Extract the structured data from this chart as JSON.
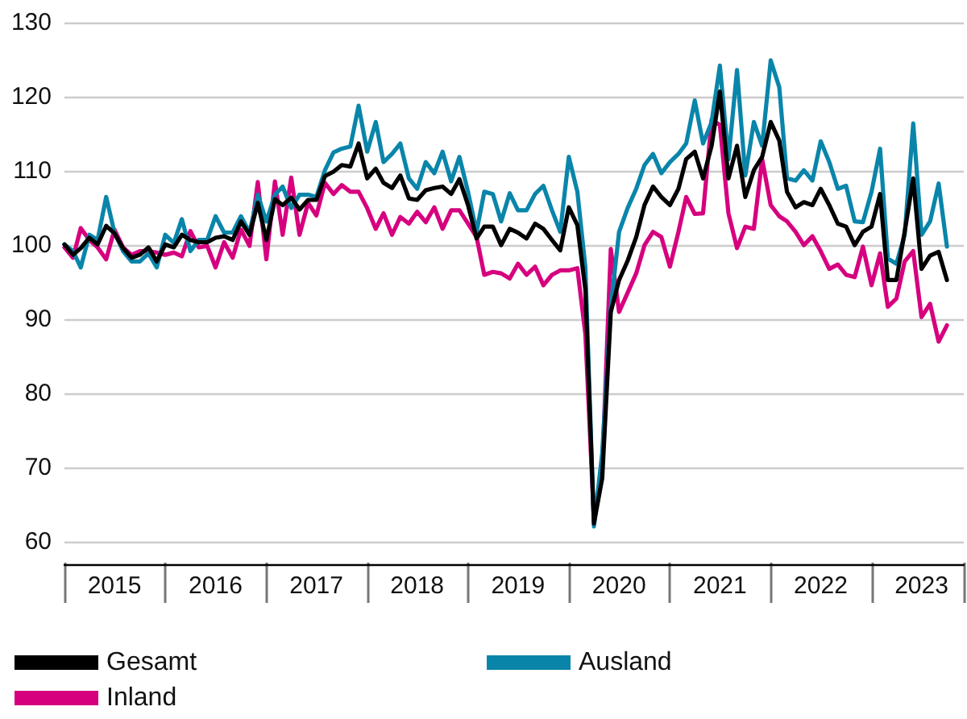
{
  "chart_data": {
    "type": "line",
    "x": [
      "2015-01",
      "2015-02",
      "2015-03",
      "2015-04",
      "2015-05",
      "2015-06",
      "2015-07",
      "2015-08",
      "2015-09",
      "2015-10",
      "2015-11",
      "2015-12",
      "2016-01",
      "2016-02",
      "2016-03",
      "2016-04",
      "2016-05",
      "2016-06",
      "2016-07",
      "2016-08",
      "2016-09",
      "2016-10",
      "2016-11",
      "2016-12",
      "2017-01",
      "2017-02",
      "2017-03",
      "2017-04",
      "2017-05",
      "2017-06",
      "2017-07",
      "2017-08",
      "2017-09",
      "2017-10",
      "2017-11",
      "2017-12",
      "2018-01",
      "2018-02",
      "2018-03",
      "2018-04",
      "2018-05",
      "2018-06",
      "2018-07",
      "2018-08",
      "2018-09",
      "2018-10",
      "2018-11",
      "2018-12",
      "2019-01",
      "2019-02",
      "2019-03",
      "2019-04",
      "2019-05",
      "2019-06",
      "2019-07",
      "2019-08",
      "2019-09",
      "2019-10",
      "2019-11",
      "2019-12",
      "2020-01",
      "2020-02",
      "2020-03",
      "2020-04",
      "2020-05",
      "2020-06",
      "2020-07",
      "2020-08",
      "2020-09",
      "2020-10",
      "2020-11",
      "2020-12",
      "2021-01",
      "2021-02",
      "2021-03",
      "2021-04",
      "2021-05",
      "2021-06",
      "2021-07",
      "2021-08",
      "2021-09",
      "2021-10",
      "2021-11",
      "2021-12",
      "2022-01",
      "2022-02",
      "2022-03",
      "2022-04",
      "2022-05",
      "2022-06",
      "2022-07",
      "2022-08",
      "2022-09",
      "2022-10",
      "2022-11",
      "2022-12",
      "2023-01",
      "2023-02",
      "2023-03",
      "2023-04",
      "2023-05",
      "2023-06",
      "2023-07",
      "2023-08",
      "2023-09",
      "2023-10"
    ],
    "series": [
      {
        "name": "Gesamt",
        "color": "#000000",
        "values": [
          100.1,
          98.7,
          99.6,
          101,
          100.1,
          102.6,
          101.6,
          99.6,
          98.3,
          98.7,
          99.7,
          97.8,
          100.1,
          99.7,
          101.4,
          100.7,
          100.4,
          100.4,
          101,
          101.2,
          100.7,
          103.2,
          101.4,
          105.7,
          100.7,
          106.2,
          105.4,
          106.4,
          104.8,
          106.1,
          106.1,
          109.3,
          109.9,
          110.8,
          110.6,
          113.7,
          109,
          110.3,
          108.4,
          107.7,
          109.4,
          106.3,
          106.1,
          107.4,
          107.7,
          107.9,
          106.9,
          108.9,
          105.4,
          100.9,
          102.5,
          102.5,
          100,
          102.2,
          101.7,
          100.9,
          102.9,
          102.2,
          100.7,
          99.3,
          105.1,
          102.7,
          94,
          62.5,
          68.6,
          91,
          95.3,
          97.9,
          101.1,
          105.4,
          107.9,
          106.5,
          105.4,
          107.6,
          111.6,
          112.6,
          109,
          113.4,
          120.7,
          109,
          113.4,
          106.5,
          110.1,
          111.9,
          116.6,
          114.1,
          107.2,
          105.1,
          105.8,
          105.4,
          107.6,
          105.4,
          102.9,
          102.5,
          100,
          101.8,
          102.5,
          106.9,
          95.3,
          95.3,
          101.8,
          109,
          96.8,
          98.6,
          99.1,
          95.3
        ]
      },
      {
        "name": "Ausland",
        "color": "#0a85aa",
        "values": [
          100.1,
          99.2,
          97,
          101.4,
          100.7,
          106.5,
          101.7,
          99.2,
          97.8,
          97.8,
          98.9,
          97,
          101.4,
          100.3,
          103.5,
          99.2,
          100.7,
          100.7,
          103.9,
          101.7,
          101.7,
          103.9,
          101.7,
          106.8,
          103.2,
          106.8,
          107.9,
          105,
          106.8,
          106.8,
          106.5,
          110.1,
          112.5,
          113,
          113.3,
          118.8,
          112.6,
          116.6,
          111.2,
          112.3,
          113.7,
          109,
          107.6,
          111.2,
          109.7,
          112.6,
          108.6,
          111.9,
          107.2,
          101.8,
          107.2,
          106.9,
          103.2,
          107,
          104.7,
          104.7,
          106.9,
          108,
          104.7,
          101.8,
          111.9,
          107.2,
          97,
          62.1,
          72,
          91.7,
          101.8,
          105,
          107.6,
          110.8,
          112.3,
          109.7,
          111.2,
          112.3,
          113.7,
          119.5,
          113.7,
          116.6,
          124.2,
          111.6,
          123.6,
          109.4,
          116.6,
          113.4,
          124.9,
          121.3,
          109,
          108.7,
          110.1,
          108.7,
          114,
          111.2,
          107.6,
          108,
          103.2,
          103.1,
          107.2,
          113,
          98.2,
          97.5,
          101.4,
          116.4,
          101.4,
          103.2,
          108.3,
          99.8
        ]
      },
      {
        "name": "Inland",
        "color": "#d6007f",
        "values": [
          99.7,
          98.3,
          102.3,
          100.7,
          99.7,
          98.1,
          102.1,
          99.7,
          98.7,
          99.2,
          99.2,
          99,
          98.7,
          99,
          98.5,
          101.9,
          99.7,
          99.9,
          97,
          100.4,
          98.3,
          102.1,
          99.9,
          108.5,
          98.1,
          108.6,
          101.4,
          109.1,
          101.4,
          105.7,
          104,
          108.4,
          106.9,
          108.1,
          107.2,
          107.2,
          105,
          102.2,
          104.3,
          101.4,
          103.8,
          102.9,
          104.5,
          103.1,
          105.1,
          102.2,
          104.7,
          104.7,
          102.9,
          101.1,
          96,
          96.4,
          96.2,
          95.5,
          97.5,
          96,
          97.1,
          94.6,
          96,
          96.6,
          96.6,
          96.9,
          88,
          63,
          70,
          99.5,
          91,
          93.6,
          96.2,
          100,
          101.8,
          101.1,
          97.1,
          101.8,
          106.5,
          104.2,
          104.3,
          116.9,
          116.2,
          104.3,
          99.6,
          102.5,
          102.2,
          111.6,
          105.4,
          103.9,
          103.2,
          101.8,
          100,
          101.2,
          99.2,
          96.8,
          97.4,
          96,
          95.7,
          99.8,
          94.6,
          98.9,
          91.7,
          92.8,
          97.8,
          99.2,
          90.3,
          92.1,
          87,
          89.2
        ]
      }
    ],
    "xlim": [
      "2015-01",
      "2023-12"
    ],
    "xticks": [
      {
        "value": "2015-07",
        "label": "2015"
      },
      {
        "value": "2016-07",
        "label": "2016"
      },
      {
        "value": "2017-07",
        "label": "2017"
      },
      {
        "value": "2018-07",
        "label": "2018"
      },
      {
        "value": "2019-07",
        "label": "2019"
      },
      {
        "value": "2020-07",
        "label": "2020"
      },
      {
        "value": "2021-07",
        "label": "2021"
      },
      {
        "value": "2022-07",
        "label": "2022"
      },
      {
        "value": "2023-07",
        "label": "2023"
      }
    ],
    "ylim": [
      57,
      130
    ],
    "yticks": [
      60,
      70,
      80,
      90,
      100,
      110,
      120,
      130
    ],
    "grid": "y",
    "legend": "bottom",
    "marker": "none",
    "line_style": "solid"
  }
}
